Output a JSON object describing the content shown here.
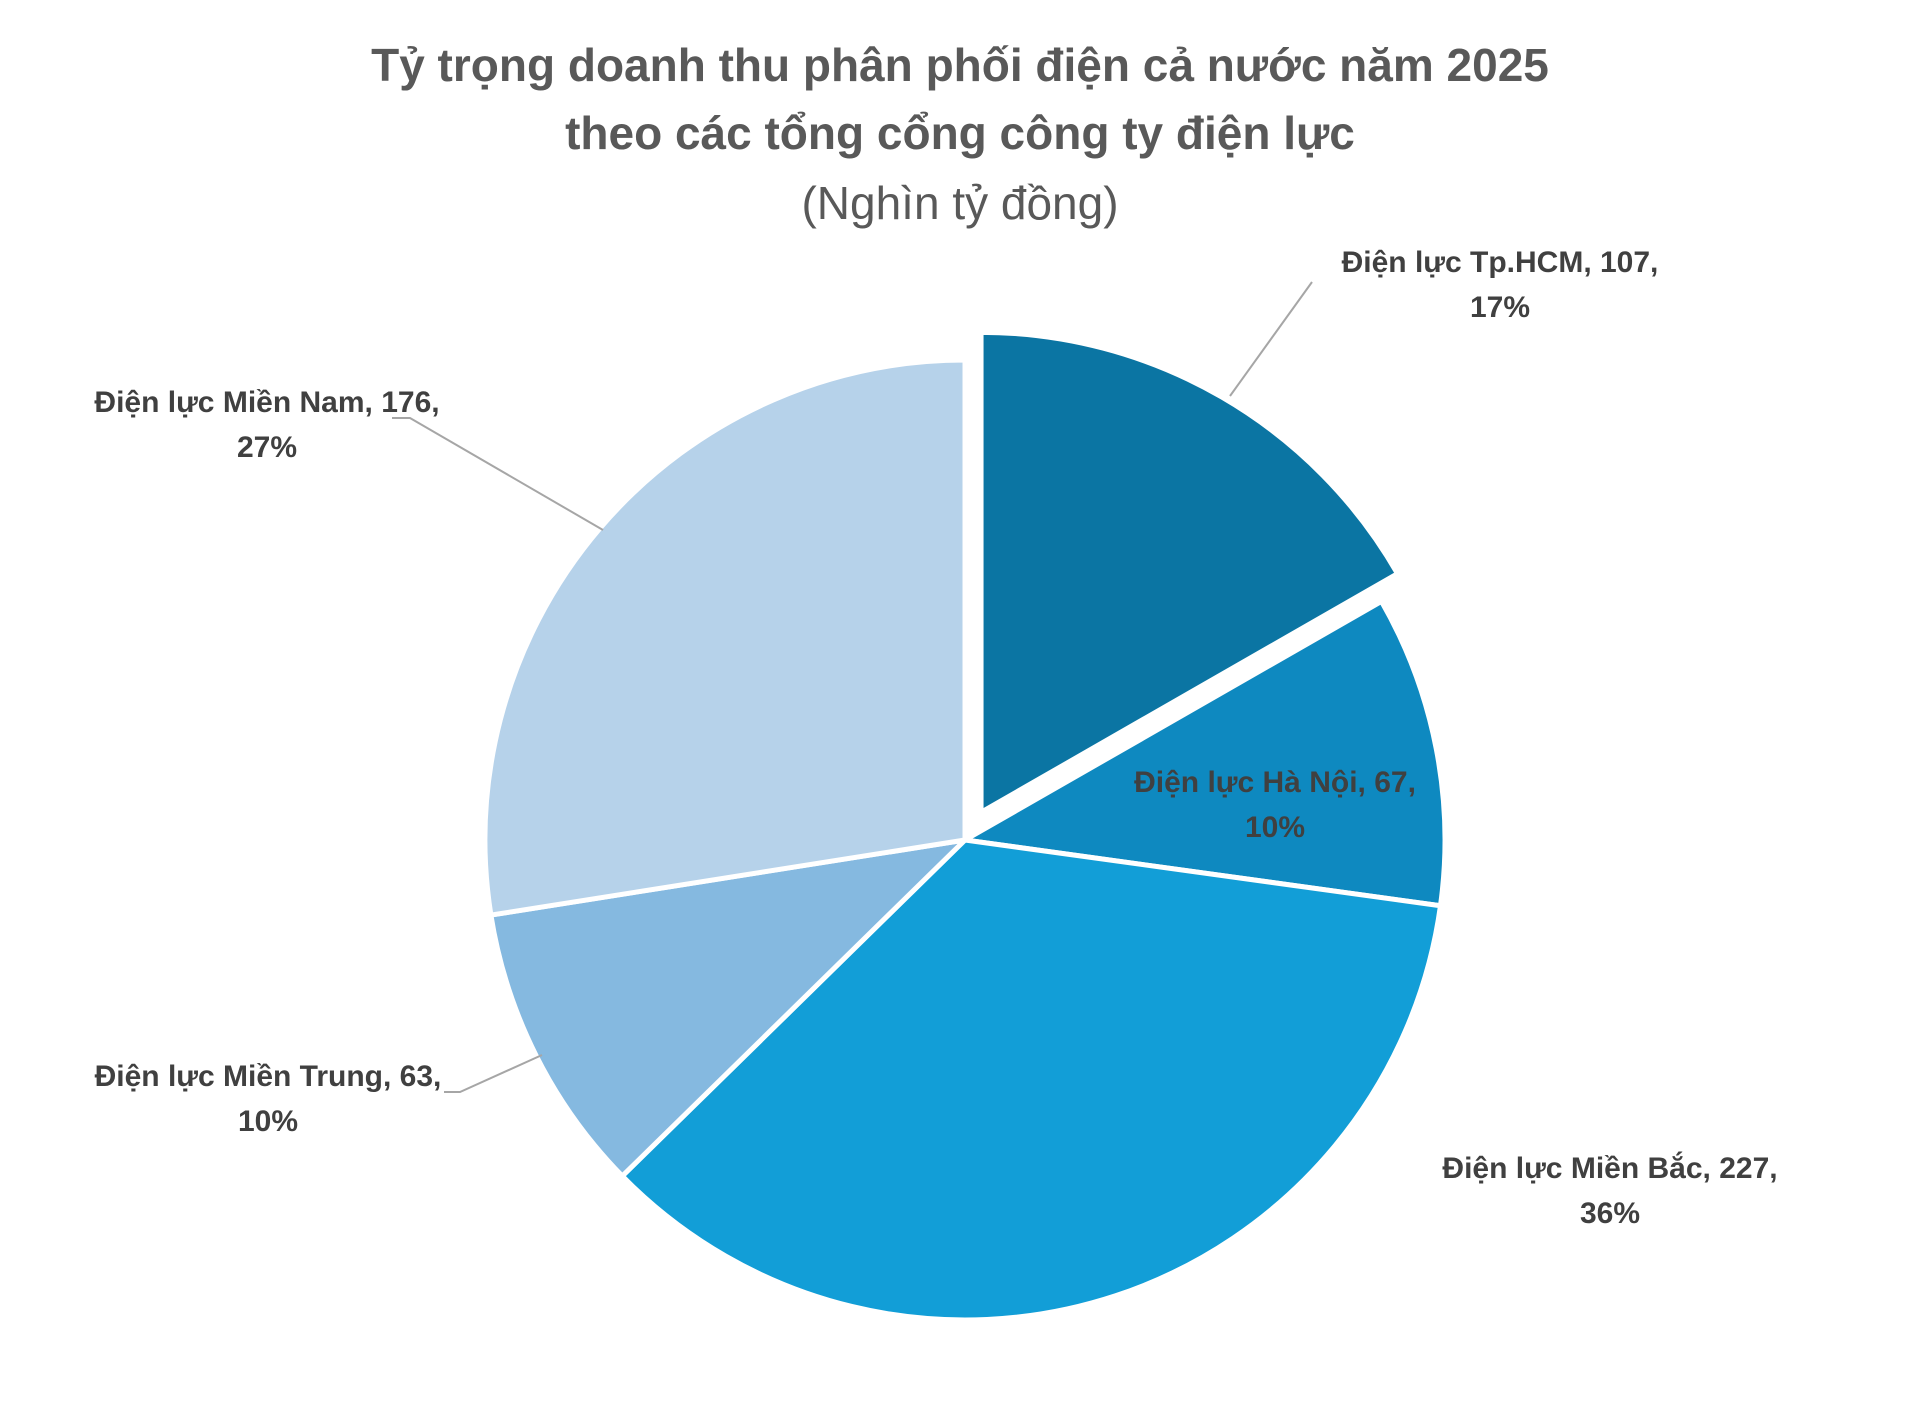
{
  "chart_data": {
    "type": "pie",
    "title_line1": "Tỷ trọng doanh thu phân phối điện cả nước năm 2025",
    "title_line2": "theo các tổng cổng công ty điện lực",
    "subtitle": "(Nghìn tỷ đồng)",
    "slices": [
      {
        "name": "Điện lực Tp.HCM",
        "value": 107,
        "percent_label": "17%",
        "label_line1": "Điện lực Tp.HCM, 107,",
        "label_line2": "17%",
        "color": "#0b75a3",
        "exploded": true
      },
      {
        "name": "Điện lực Hà Nội",
        "value": 67,
        "percent_label": "10%",
        "label_line1": "Điện lực Hà Nội, 67,",
        "label_line2": "10%",
        "color": "#0e89c0",
        "exploded": false
      },
      {
        "name": "Điện lực Miền Bắc",
        "value": 227,
        "percent_label": "36%",
        "label_line1": "Điện lực Miền Bắc, 227,",
        "label_line2": "36%",
        "color": "#129ed7",
        "exploded": false
      },
      {
        "name": "Điện lực Miền Trung",
        "value": 63,
        "percent_label": "10%",
        "label_line1": "Điện lực Miền Trung, 63,",
        "label_line2": "10%",
        "color": "#85b9e0",
        "exploded": false
      },
      {
        "name": "Điện lực Miền Nam",
        "value": 176,
        "percent_label": "27%",
        "label_line1": "Điện lực Miền Nam, 176,",
        "label_line2": "27%",
        "color": "#b6d2ea",
        "exploded": false
      }
    ],
    "start_angle": "12 o'clock, clockwise",
    "legend": "none"
  }
}
